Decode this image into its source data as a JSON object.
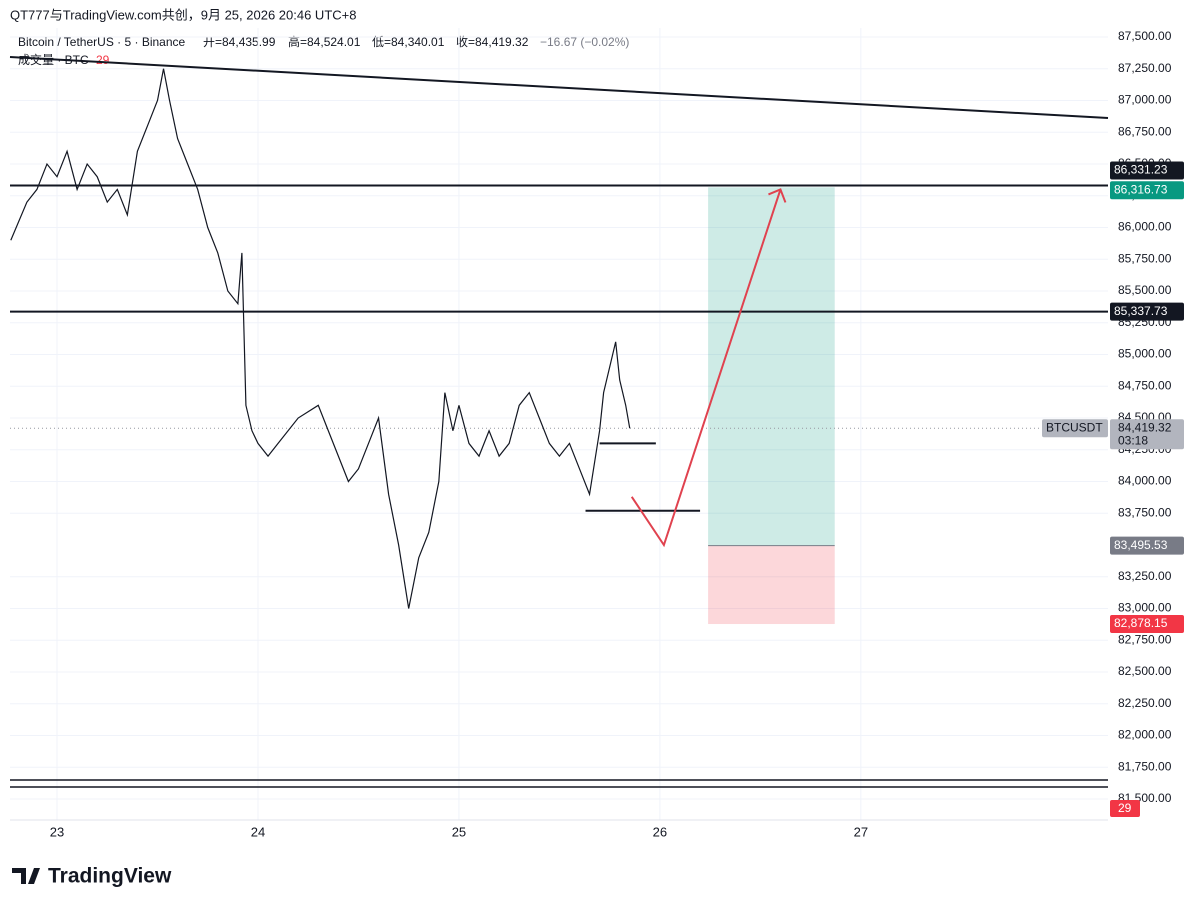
{
  "header": {
    "attribution": "QT777与TradingView.com共创，9月 25, 2026 20:46 UTC+8",
    "symbol": "Bitcoin / TetherUS · 5 · Binance",
    "ohlc": [
      "开=84,435.99",
      "高=84,524.01",
      "低=84,340.01",
      "收=84,419.32"
    ],
    "change": "−16.67 (−0.02%)",
    "volume_label": "成交量 · BTC",
    "volume_value": "29"
  },
  "footer": {
    "logo": "TradingView"
  },
  "chart_data": {
    "type": "line",
    "x": [
      22.77,
      22.85,
      22.9,
      22.95,
      23.0,
      23.05,
      23.1,
      23.15,
      23.2,
      23.25,
      23.3,
      23.35,
      23.4,
      23.45,
      23.5,
      23.53,
      23.56,
      23.6,
      23.65,
      23.7,
      23.75,
      23.8,
      23.85,
      23.9,
      23.92,
      23.94,
      23.97,
      24.0,
      24.05,
      24.1,
      24.2,
      24.3,
      24.35,
      24.4,
      24.45,
      24.5,
      24.55,
      24.6,
      24.65,
      24.7,
      24.73,
      24.75,
      24.8,
      24.85,
      24.9,
      24.93,
      24.97,
      25.0,
      25.05,
      25.1,
      25.15,
      25.2,
      25.25,
      25.3,
      25.35,
      25.4,
      25.45,
      25.5,
      25.55,
      25.6,
      25.65,
      25.7,
      25.72,
      25.75,
      25.78,
      25.8,
      25.83,
      25.85
    ],
    "series": [
      {
        "name": "BTCUSDT",
        "color": "#131722",
        "values": [
          85900,
          86200,
          86300,
          86500,
          86400,
          86600,
          86300,
          86500,
          86400,
          86200,
          86300,
          86100,
          86600,
          86800,
          87000,
          87250,
          87000,
          86700,
          86500,
          86300,
          86000,
          85800,
          85500,
          85400,
          85800,
          84600,
          84400,
          84300,
          84200,
          84300,
          84500,
          84600,
          84400,
          84200,
          84000,
          84100,
          84300,
          84500,
          83900,
          83500,
          83200,
          83000,
          83400,
          83600,
          84000,
          84700,
          84400,
          84600,
          84300,
          84200,
          84400,
          84200,
          84300,
          84600,
          84700,
          84500,
          84300,
          84200,
          84300,
          84100,
          83900,
          84400,
          84700,
          84900,
          85100,
          84800,
          84600,
          84419.32
        ]
      }
    ],
    "xlim": [
      22.766,
      28.23
    ],
    "ylim": [
      81335,
      87571
    ],
    "xticks": [
      23,
      24,
      25,
      26,
      27
    ],
    "yticks": [
      {
        "value": 81500,
        "label": "81,500.00"
      },
      {
        "value": 81750,
        "label": "81,750.00"
      },
      {
        "value": 82000,
        "label": "82,000.00"
      },
      {
        "value": 82250,
        "label": "82,250.00"
      },
      {
        "value": 82500,
        "label": "82,500.00"
      },
      {
        "value": 82750,
        "label": "82,750.00"
      },
      {
        "value": 83000,
        "label": "83,000.00"
      },
      {
        "value": 83250,
        "label": "83,250.00"
      },
      {
        "value": 83750,
        "label": "83,750.00"
      },
      {
        "value": 84000,
        "label": "84,000.00"
      },
      {
        "value": 84250,
        "label": "84,250.00"
      },
      {
        "value": 84500,
        "label": "84,500.00"
      },
      {
        "value": 84750,
        "label": "84,750.00"
      },
      {
        "value": 85000,
        "label": "85,000.00"
      },
      {
        "value": 85250,
        "label": "85,250.00"
      },
      {
        "value": 85500,
        "label": "85,500.00"
      },
      {
        "value": 85750,
        "label": "85,750.00"
      },
      {
        "value": 86000,
        "label": "86,000.00"
      },
      {
        "value": 86250,
        "label": "86,250.00"
      },
      {
        "value": 86500,
        "label": "86,500.00"
      },
      {
        "value": 86750,
        "label": "86,750.00"
      },
      {
        "value": 87000,
        "label": "87,000.00"
      },
      {
        "value": 87250,
        "label": "87,250.00"
      },
      {
        "value": 87500,
        "label": "87,500.00"
      }
    ],
    "grid": true,
    "levels": [
      {
        "value": 86331.23,
        "label": "86,331.23"
      },
      {
        "value": 85337.73,
        "label": "85,337.73"
      }
    ],
    "position": {
      "x": [
        26.24,
        26.87
      ],
      "target": {
        "value": 86316.73,
        "label": "86,316.73",
        "color": "#089981"
      },
      "entry": {
        "value": 83495.53,
        "label": "83,495.53",
        "color": "#787b86"
      },
      "stop": {
        "value": 82878.15,
        "label": "82,878.15",
        "color": "#f23645"
      }
    },
    "last": {
      "value": 84419.32,
      "label": "84,419.32",
      "symbol": "BTCUSDT",
      "countdown": "03:18"
    },
    "trendline": {
      "x": [
        22.766,
        28.23
      ],
      "values": [
        87343,
        86862
      ]
    },
    "arrow": {
      "x": [
        25.86,
        26.02,
        26.6
      ],
      "values": [
        83880,
        83500,
        86300
      ],
      "color": "#e0424f"
    },
    "supports": [
      {
        "x": [
          25.7,
          25.98
        ],
        "value": 84300
      },
      {
        "x": [
          25.63,
          26.2
        ],
        "value": 83770
      }
    ],
    "volume_lines": [
      81650,
      81595
    ]
  }
}
